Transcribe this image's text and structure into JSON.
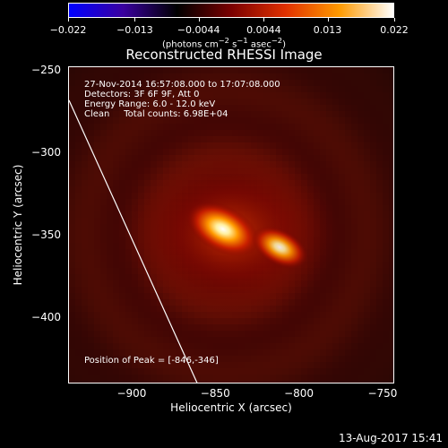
{
  "chart_data": {
    "type": "heatmap",
    "title": "Reconstructed RHESSI Image",
    "xlabel": "Heliocentric X (arcsec)",
    "ylabel": "Heliocentric Y (arcsec)",
    "xlim": [
      -938,
      -743
    ],
    "ylim": [
      -440,
      -248
    ],
    "xticks": [
      "−900",
      "−850",
      "−800",
      "−750"
    ],
    "xtick_values": [
      -900,
      -850,
      -800,
      -750
    ],
    "yticks": [
      "−250",
      "−300",
      "−350",
      "−400"
    ],
    "ytick_values": [
      -250,
      -300,
      -350,
      -400
    ],
    "colorbar": {
      "ticks": [
        "−0.022",
        "−0.013",
        "−0.0044",
        "0.0044",
        "0.013",
        "0.022"
      ],
      "tick_values": [
        -0.022,
        -0.013,
        -0.0044,
        0.0044,
        0.013,
        0.022
      ],
      "range": [
        -0.022,
        0.022
      ],
      "units_prefix": "(photons cm",
      "units_exp1": "−2",
      "units_mid": " s",
      "units_exp2": "−1",
      "units_mid2": " asec",
      "units_exp3": "−2",
      "units_suffix": ")",
      "colormap": "hot",
      "colors": [
        "#0000ff",
        "#3a00a0",
        "#000000",
        "#7a0000",
        "#e03000",
        "#ff9a00",
        "#ffffff"
      ]
    },
    "info_lines": [
      "27-Nov-2014 16:57:08.000 to 17:07:08.000",
      "Detectors: 3F 6F 9F, Att 0",
      "Energy Range: 6.0 - 12.0 keV",
      "Clean     Total counts: 6.98E+04"
    ],
    "peak_label": "Position of Peak = [-846,-346]",
    "peak": [
      -846,
      -346
    ],
    "sources": [
      {
        "x": -846,
        "y": -346,
        "peak": 0.022
      },
      {
        "x": -812,
        "y": -357,
        "peak": 0.016
      }
    ],
    "limb_line": [
      [
        -938,
        -268
      ],
      [
        -861,
        -440
      ]
    ]
  },
  "datestamp": "13-Aug-2017 15:41"
}
